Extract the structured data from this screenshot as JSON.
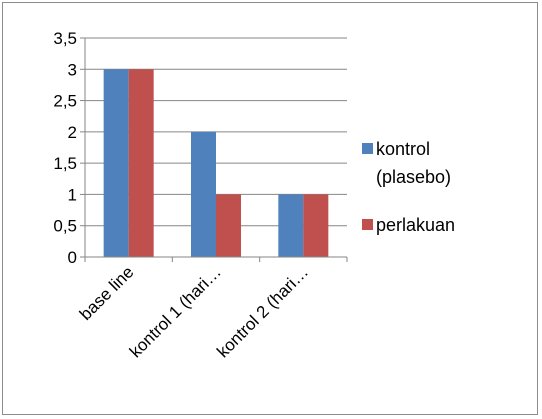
{
  "chart_data": {
    "type": "bar",
    "title": "",
    "xlabel": "",
    "ylabel": "",
    "categories": [
      "base line",
      "kontrol 1 (hari…",
      "kontrol 2 (hari…"
    ],
    "series": [
      {
        "name": "kontrol (plasebo)",
        "name_lines": [
          "kontrol",
          "(plasebo)"
        ],
        "color": "#4f81bd",
        "values": [
          3,
          2,
          1
        ]
      },
      {
        "name": "perlakuan",
        "name_lines": [
          "perlakuan"
        ],
        "color": "#c0504d",
        "values": [
          3,
          1,
          1
        ]
      }
    ],
    "ylim": [
      0,
      3.5
    ],
    "ytick_step": 0.5,
    "ytick_labels": [
      "0",
      "0,5",
      "1",
      "1,5",
      "2",
      "2,5",
      "3",
      "3,5"
    ],
    "grid": true,
    "legend_position": "right"
  }
}
